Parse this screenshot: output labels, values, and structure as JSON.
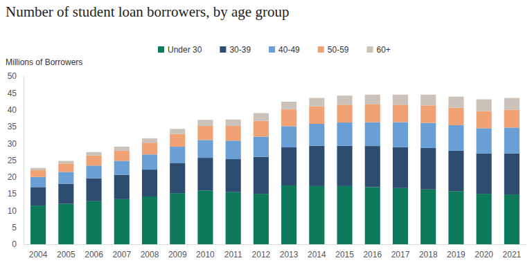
{
  "chart_data": {
    "type": "bar",
    "stacked": true,
    "grid": false,
    "legend": "top",
    "title": "Number of student loan borrowers, by age group",
    "y_label": "Millions of Borrowers",
    "categories": [
      "2004",
      "2005",
      "2006",
      "2007",
      "2008",
      "2009",
      "2010",
      "2011",
      "2012",
      "2013",
      "2014",
      "2015",
      "2016",
      "2017",
      "2018",
      "2019",
      "2020",
      "2021"
    ],
    "ylim": [
      0,
      50
    ],
    "yticks": [
      0,
      5,
      10,
      15,
      20,
      25,
      30,
      35,
      40,
      45,
      50
    ],
    "series": [
      {
        "name": "Under 30",
        "color": "#0d7a5c",
        "values": [
          11.5,
          12,
          12.8,
          13.4,
          14.2,
          15.2,
          16,
          15.5,
          15,
          17.5,
          17.3,
          17.3,
          17,
          16.7,
          16.3,
          15.8,
          15,
          14.8
        ]
      },
      {
        "name": "30-39",
        "color": "#2c4d70",
        "values": [
          5.5,
          6,
          6.8,
          7.2,
          8,
          9,
          9.7,
          9.8,
          11,
          11.3,
          12,
          12,
          12.2,
          12.2,
          12.3,
          12,
          12,
          12.2
        ]
      },
      {
        "name": "40-49",
        "color": "#6a9fd6",
        "values": [
          3,
          3.5,
          3.8,
          4.2,
          4.5,
          4.8,
          5.3,
          5.5,
          6,
          6.3,
          6.5,
          6.9,
          7.1,
          7.4,
          7.5,
          7.6,
          7.5,
          7.7
        ]
      },
      {
        "name": "50-59",
        "color": "#f1a274",
        "values": [
          2,
          2.5,
          3,
          3,
          3.5,
          3.8,
          4.2,
          4.4,
          4.7,
          5,
          5.2,
          5.3,
          5.4,
          5.2,
          5.2,
          5.2,
          5.1,
          5.3
        ]
      },
      {
        "name": "60+",
        "color": "#cbc2ba",
        "values": [
          0.7,
          0.8,
          1,
          1.2,
          1.3,
          1.5,
          1.8,
          1.9,
          2.3,
          2.3,
          2.5,
          2.7,
          2.8,
          3,
          3.2,
          3.3,
          3.5,
          3.5
        ]
      }
    ]
  }
}
